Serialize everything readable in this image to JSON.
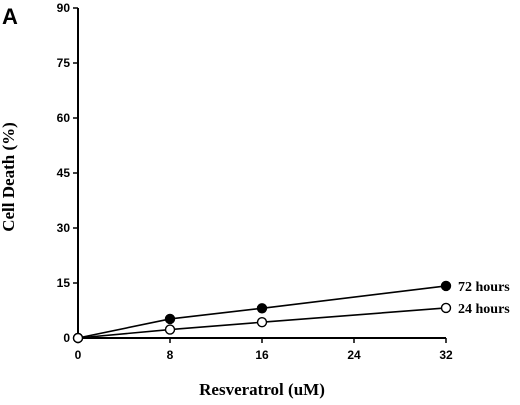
{
  "chart_data": {
    "type": "line",
    "panel_label": "A",
    "xlabel": "Resveratrol (uM)",
    "ylabel": "Cell Death (%)",
    "xlim": [
      0,
      32
    ],
    "ylim": [
      0,
      90
    ],
    "x_ticks": [
      "0",
      "8",
      "16",
      "24",
      "32"
    ],
    "y_ticks": [
      "0",
      "15",
      "30",
      "45",
      "60",
      "75",
      "90"
    ],
    "grid": false,
    "x": [
      0,
      8,
      16,
      32
    ],
    "series": [
      {
        "name": "72 hours",
        "marker": "filled-circle",
        "values": [
          0,
          5.2,
          8.1,
          14.2
        ]
      },
      {
        "name": "24 hours",
        "marker": "open-circle",
        "values": [
          0,
          2.3,
          4.3,
          8.2
        ]
      }
    ]
  }
}
